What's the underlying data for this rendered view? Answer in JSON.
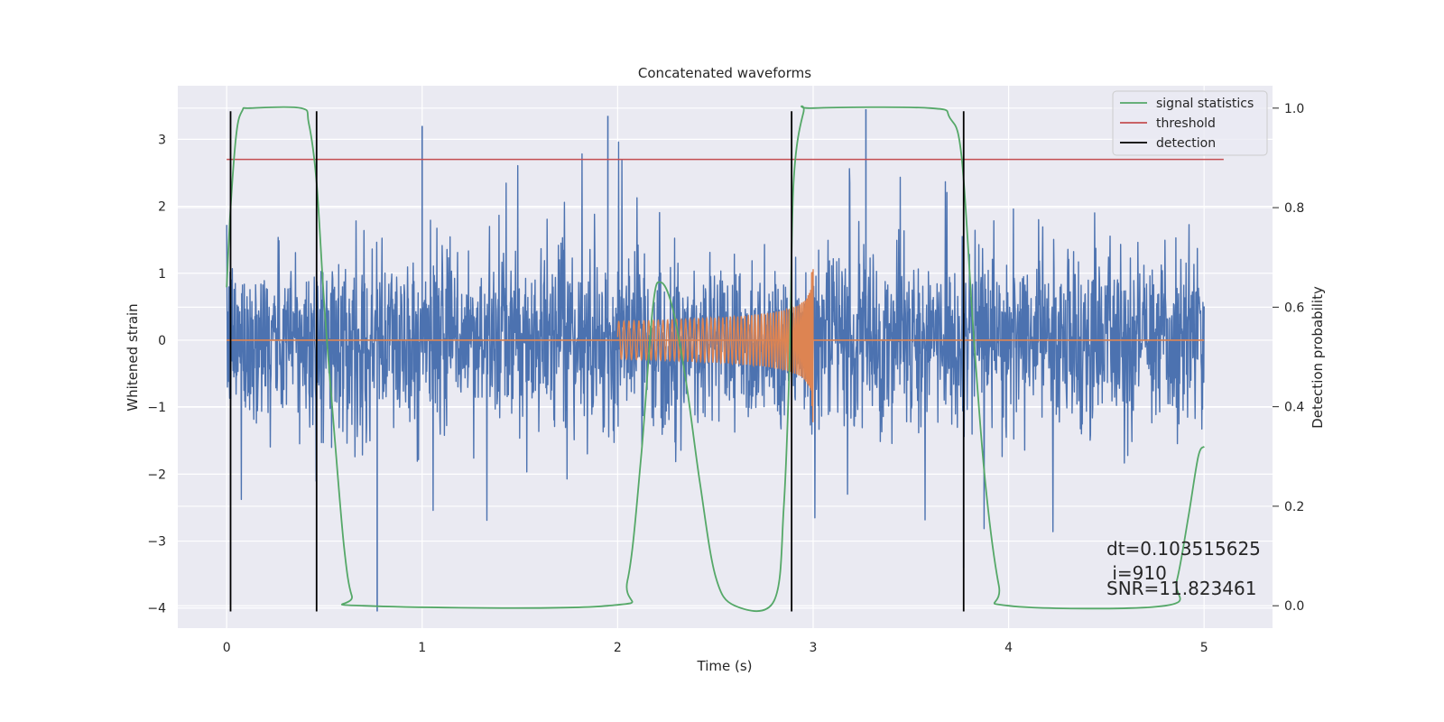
{
  "chart_data": {
    "type": "line",
    "title": "Concatenated waveforms",
    "xlabel": "Time (s)",
    "ylabel_left": "Whitened strain",
    "ylabel_right": "Detection probability",
    "xlim": [
      -0.25,
      5.35
    ],
    "ylim_left": [
      -4.3,
      3.8
    ],
    "ylim_right": [
      -0.045,
      1.045
    ],
    "xticks": [
      0,
      1,
      2,
      3,
      4,
      5
    ],
    "yticks_left": [
      -4,
      -3,
      -2,
      -1,
      0,
      1,
      2,
      3
    ],
    "yticks_right": [
      0.0,
      0.2,
      0.4,
      0.6,
      0.8,
      1.0
    ],
    "xtick_labels": [
      "0",
      "1",
      "2",
      "3",
      "4",
      "5"
    ],
    "ytick_labels_left": [
      "−4",
      "−3",
      "−2",
      "−1",
      "0",
      "1",
      "2",
      "3"
    ],
    "ytick_labels_right": [
      "0.0",
      "0.2",
      "0.4",
      "0.6",
      "0.8",
      "1.0"
    ],
    "grid": true,
    "legend_position": "top-right",
    "series": [
      {
        "name": "",
        "axis": "left",
        "color": "#4c72b0",
        "kind": "noise",
        "x_range": [
          0,
          5
        ],
        "typical_amplitude": 1.5,
        "max": 3.45,
        "min": -4.05
      },
      {
        "name": "",
        "axis": "left",
        "color": "#dd8452",
        "kind": "chirp",
        "x_range": [
          2.0,
          3.0
        ],
        "start_amplitude": 0.28,
        "peak_amplitude": 1.35,
        "peak_x": 3.0
      },
      {
        "name": "signal statistics",
        "axis": "right",
        "color": "#55a868",
        "x": [
          0.0,
          0.02,
          0.05,
          0.08,
          0.12,
          0.38,
          0.42,
          0.46,
          0.5,
          0.55,
          0.6,
          0.64,
          0.7,
          1.95,
          2.05,
          2.12,
          2.18,
          2.22,
          2.28,
          2.35,
          2.42,
          2.5,
          2.6,
          2.8,
          2.85,
          2.88,
          2.9,
          2.95,
          3.0,
          3.6,
          3.7,
          3.76,
          3.82,
          3.88,
          3.95,
          4.0,
          4.8,
          4.86,
          4.92,
          4.97,
          5.0
        ],
        "y": [
          0.64,
          0.8,
          0.95,
          0.995,
          1.0,
          1.0,
          0.97,
          0.85,
          0.6,
          0.35,
          0.12,
          0.02,
          0.0,
          0.0,
          0.05,
          0.3,
          0.6,
          0.65,
          0.6,
          0.45,
          0.25,
          0.06,
          0.0,
          0.01,
          0.2,
          0.5,
          0.85,
          0.99,
          1.0,
          1.0,
          0.98,
          0.9,
          0.55,
          0.25,
          0.04,
          0.0,
          0.0,
          0.05,
          0.18,
          0.3,
          0.32
        ]
      },
      {
        "name": "threshold",
        "axis": "left",
        "color": "#c44e52",
        "x": [
          0.0,
          5.1
        ],
        "y": [
          2.7,
          2.7
        ]
      },
      {
        "name": "detection",
        "axis": "left",
        "color": "#000000",
        "x": [
          0.02,
          0.46,
          2.89,
          3.77
        ],
        "y_range": [
          -4.05,
          3.42
        ]
      }
    ],
    "annotations": [
      "dt=0.103515625",
      " i=910",
      "SNR=11.823461"
    ]
  }
}
